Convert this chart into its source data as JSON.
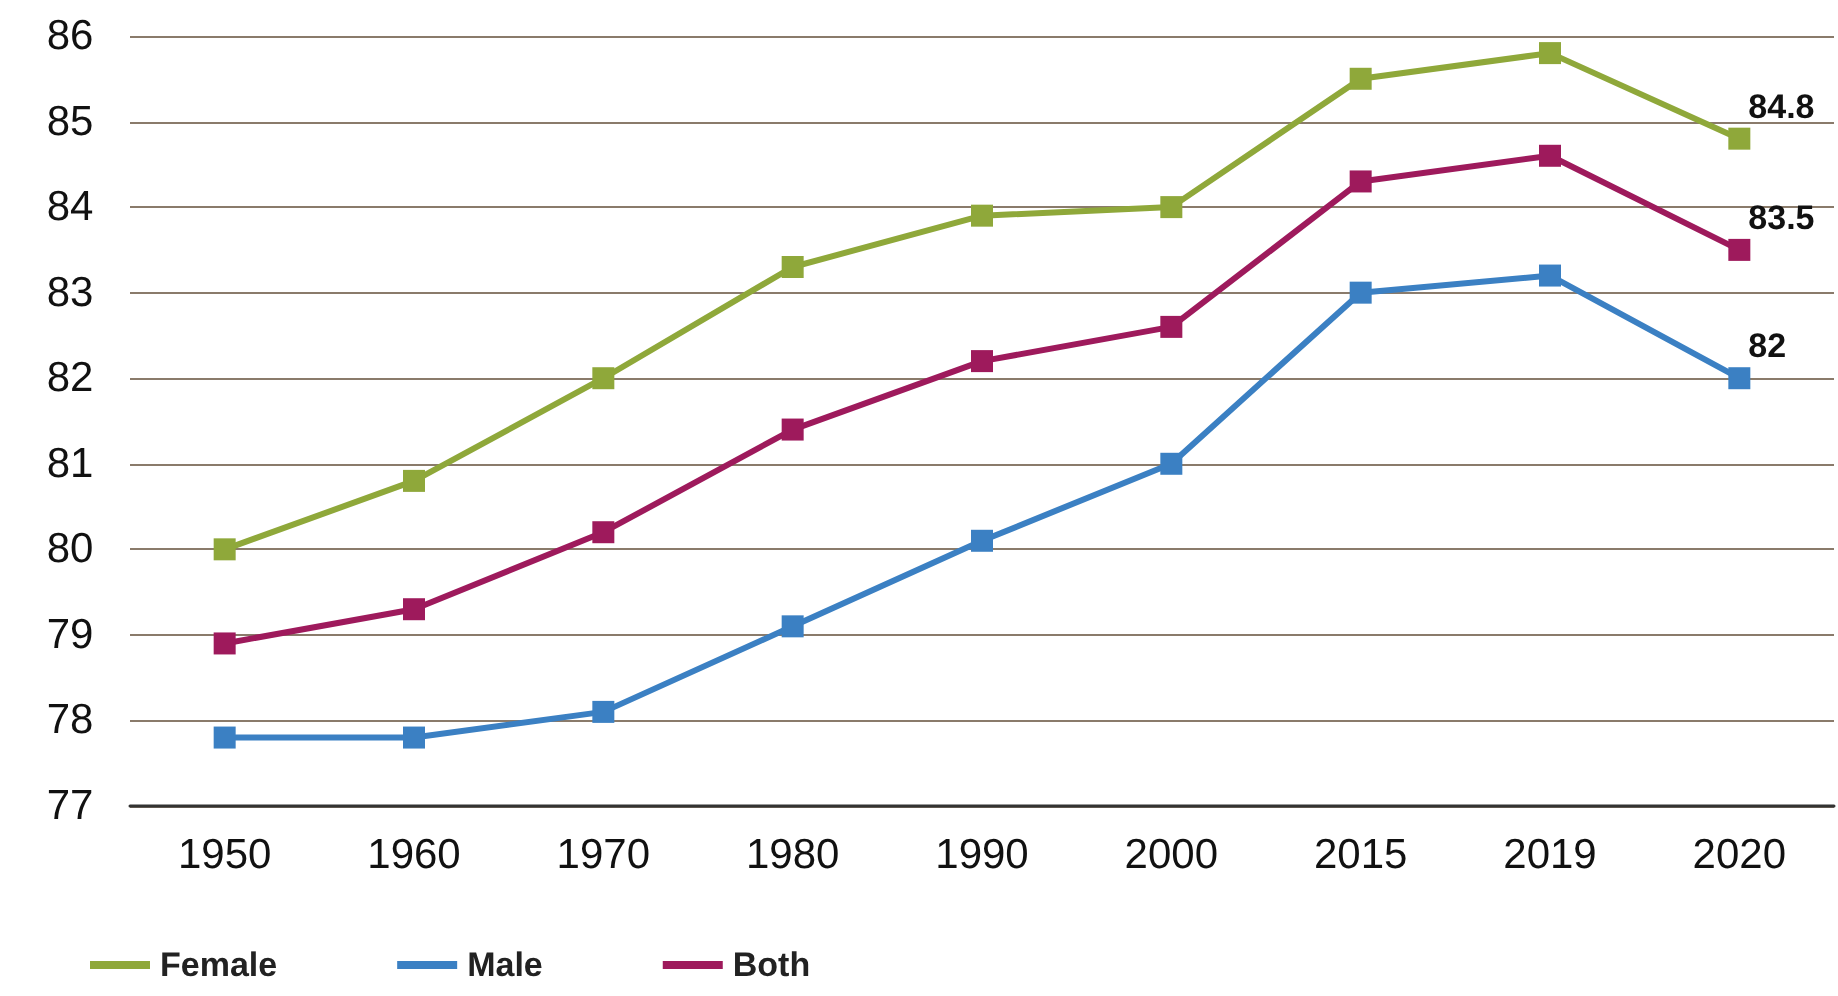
{
  "chart_data": {
    "type": "line",
    "categories": [
      "1950",
      "1960",
      "1970",
      "1980",
      "1990",
      "2000",
      "2015",
      "2019",
      "2020"
    ],
    "series": [
      {
        "name": "Female",
        "color": "#8fa83a",
        "values": [
          80.0,
          80.8,
          82.0,
          83.3,
          83.9,
          84.0,
          85.5,
          85.8,
          84.8
        ],
        "value_labels": [
          null,
          null,
          null,
          null,
          null,
          null,
          null,
          null,
          "84.8"
        ]
      },
      {
        "name": "Male",
        "color": "#3b80c3",
        "values": [
          77.8,
          77.8,
          78.1,
          79.1,
          80.1,
          81.0,
          83.0,
          83.2,
          82.0
        ],
        "value_labels": [
          null,
          null,
          null,
          null,
          null,
          null,
          null,
          null,
          "82"
        ]
      },
      {
        "name": "Both",
        "color": "#9e1a5c",
        "values": [
          78.9,
          79.3,
          80.2,
          81.4,
          82.2,
          82.6,
          84.3,
          84.6,
          83.5
        ],
        "value_labels": [
          null,
          null,
          null,
          null,
          null,
          null,
          null,
          null,
          "83.5"
        ]
      }
    ],
    "ylim": [
      77,
      86
    ],
    "yticks": [
      77,
      78,
      79,
      80,
      81,
      82,
      83,
      84,
      85,
      86
    ],
    "grid": "y",
    "legend": "bottom left",
    "marker": "square",
    "line_style": "solid"
  }
}
